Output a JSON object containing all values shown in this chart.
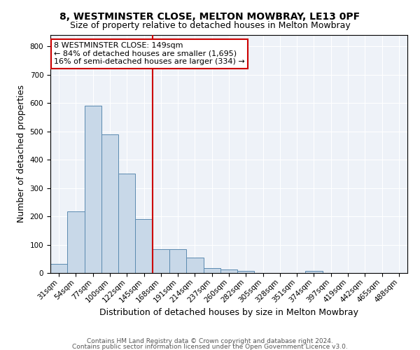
{
  "title": "8, WESTMINSTER CLOSE, MELTON MOWBRAY, LE13 0PF",
  "subtitle": "Size of property relative to detached houses in Melton Mowbray",
  "xlabel": "Distribution of detached houses by size in Melton Mowbray",
  "ylabel": "Number of detached properties",
  "categories": [
    "31sqm",
    "54sqm",
    "77sqm",
    "100sqm",
    "122sqm",
    "145sqm",
    "168sqm",
    "191sqm",
    "214sqm",
    "237sqm",
    "260sqm",
    "282sqm",
    "305sqm",
    "328sqm",
    "351sqm",
    "374sqm",
    "397sqm",
    "419sqm",
    "442sqm",
    "465sqm",
    "488sqm"
  ],
  "values": [
    32,
    218,
    590,
    488,
    350,
    190,
    83,
    83,
    55,
    18,
    13,
    8,
    0,
    0,
    0,
    8,
    0,
    0,
    0,
    0,
    0
  ],
  "bar_color": "#c8d8e8",
  "bar_edge_color": "#5b8ab0",
  "vline_color": "#cc0000",
  "vline_pos": 5.5,
  "annotation_text": "8 WESTMINSTER CLOSE: 149sqm\n← 84% of detached houses are smaller (1,695)\n16% of semi-detached houses are larger (334) →",
  "annotation_box_color": "white",
  "annotation_box_edge": "#cc0000",
  "ylim": [
    0,
    840
  ],
  "yticks": [
    0,
    100,
    200,
    300,
    400,
    500,
    600,
    700,
    800
  ],
  "footer_line1": "Contains HM Land Registry data © Crown copyright and database right 2024.",
  "footer_line2": "Contains public sector information licensed under the Open Government Licence v3.0.",
  "bg_color": "#eef2f8",
  "grid_color": "white",
  "title_fontsize": 10,
  "subtitle_fontsize": 9,
  "ylabel_fontsize": 9,
  "xlabel_fontsize": 9,
  "tick_fontsize": 7.5,
  "annot_fontsize": 8,
  "footer_fontsize": 6.5
}
